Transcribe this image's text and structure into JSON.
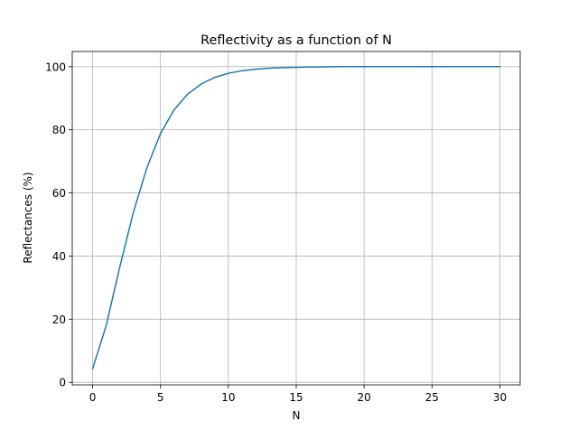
{
  "chart_data": {
    "type": "line",
    "title": "Reflectivity as a function of N",
    "xlabel": "N",
    "ylabel": "Reflectances (%)",
    "xlim": [
      -1.5,
      31.5
    ],
    "ylim": [
      -0.8,
      104.8
    ],
    "xticks": [
      0,
      5,
      10,
      15,
      20,
      25,
      30
    ],
    "yticks": [
      0,
      20,
      40,
      60,
      80,
      100
    ],
    "grid": true,
    "line_color": "#1f77b4",
    "series": [
      {
        "name": "Reflectance",
        "x": [
          0,
          1,
          2,
          3,
          4,
          5,
          6,
          7,
          8,
          9,
          10,
          11,
          12,
          13,
          14,
          15,
          16,
          17,
          18,
          19,
          20,
          21,
          22,
          23,
          24,
          25,
          26,
          27,
          28,
          29,
          30
        ],
        "values": [
          4.3,
          18.0,
          36.5,
          53.8,
          68.0,
          78.8,
          86.3,
          91.3,
          94.5,
          96.6,
          97.9,
          98.7,
          99.2,
          99.5,
          99.7,
          99.8,
          99.9,
          99.9,
          100.0,
          100.0,
          100.0,
          100.0,
          100.0,
          100.0,
          100.0,
          100.0,
          100.0,
          100.0,
          100.0,
          100.0,
          100.0
        ]
      }
    ]
  }
}
